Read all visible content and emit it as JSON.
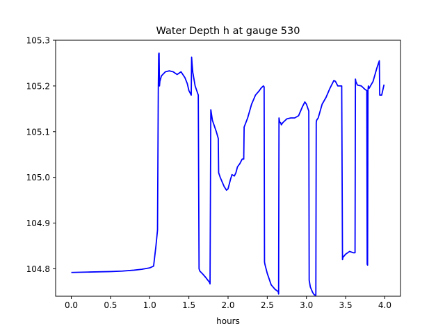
{
  "chart_data": {
    "type": "line",
    "title": "Water Depth h at gauge 530",
    "xlabel": "hours",
    "ylabel": "",
    "xlim": [
      -0.2,
      4.2
    ],
    "ylim": [
      104.74,
      105.3
    ],
    "xticks": [
      0.0,
      0.5,
      1.0,
      1.5,
      2.0,
      2.5,
      3.0,
      3.5,
      4.0
    ],
    "xtick_labels": [
      "0.0",
      "0.5",
      "1.0",
      "1.5",
      "2.0",
      "2.5",
      "3.0",
      "3.5",
      "4.0"
    ],
    "yticks": [
      104.8,
      104.9,
      105.0,
      105.1,
      105.2,
      105.3
    ],
    "ytick_labels": [
      "104.8",
      "104.9",
      "105.0",
      "105.1",
      "105.2",
      "105.3"
    ],
    "grid": false,
    "legend": "none",
    "series": [
      {
        "color": "#0000ff",
        "x": [
          0.0,
          0.25,
          0.5,
          0.65,
          0.8,
          0.9,
          1.0,
          1.05,
          1.08,
          1.1,
          1.11,
          1.115,
          1.12,
          1.125,
          1.13,
          1.15,
          1.2,
          1.25,
          1.3,
          1.35,
          1.4,
          1.45,
          1.48,
          1.5,
          1.53,
          1.535,
          1.54,
          1.55,
          1.58,
          1.6,
          1.62,
          1.63,
          1.64,
          1.68,
          1.72,
          1.765,
          1.77,
          1.78,
          1.8,
          1.85,
          1.875,
          1.88,
          1.9,
          1.95,
          1.98,
          2.0,
          2.03,
          2.05,
          2.08,
          2.1,
          2.12,
          2.15,
          2.18,
          2.2,
          2.205,
          2.25,
          2.3,
          2.35,
          2.4,
          2.42,
          2.45,
          2.46,
          2.465,
          2.47,
          2.5,
          2.55,
          2.6,
          2.64,
          2.645,
          2.65,
          2.66,
          2.67,
          2.68,
          2.7,
          2.75,
          2.8,
          2.85,
          2.9,
          2.95,
          2.98,
          3.0,
          3.03,
          3.035,
          3.05,
          3.08,
          3.1,
          3.12,
          3.125,
          3.13,
          3.15,
          3.2,
          3.25,
          3.3,
          3.35,
          3.37,
          3.4,
          3.42,
          3.45,
          3.46,
          3.465,
          3.5,
          3.55,
          3.6,
          3.62,
          3.625,
          3.63,
          3.65,
          3.7,
          3.75,
          3.77,
          3.775,
          3.78,
          3.785,
          3.79,
          3.8,
          3.85,
          3.9,
          3.93,
          3.935,
          3.94,
          3.96,
          3.99
        ],
        "y": [
          104.792,
          104.793,
          104.794,
          104.795,
          104.797,
          104.799,
          104.802,
          104.806,
          104.85,
          104.885,
          105.195,
          105.27,
          105.272,
          105.2,
          105.21,
          105.222,
          105.231,
          105.233,
          105.231,
          105.225,
          105.231,
          105.218,
          105.205,
          105.19,
          105.18,
          105.263,
          105.25,
          105.23,
          105.2,
          105.19,
          105.18,
          104.8,
          104.795,
          104.788,
          104.78,
          104.77,
          104.767,
          105.148,
          105.125,
          105.1,
          105.085,
          105.01,
          105.0,
          104.98,
          104.972,
          104.975,
          104.995,
          105.006,
          105.003,
          105.01,
          105.023,
          105.03,
          105.04,
          105.04,
          105.11,
          105.13,
          105.16,
          105.18,
          105.19,
          105.195,
          105.2,
          105.198,
          104.815,
          104.81,
          104.79,
          104.765,
          104.755,
          104.75,
          104.745,
          105.13,
          105.12,
          105.12,
          105.115,
          105.12,
          105.128,
          105.13,
          105.13,
          105.135,
          105.155,
          105.165,
          105.16,
          105.145,
          104.775,
          104.76,
          104.748,
          104.743,
          104.742,
          105.12,
          105.125,
          105.13,
          105.16,
          105.175,
          105.195,
          105.212,
          105.21,
          105.2,
          105.2,
          105.2,
          104.82,
          104.825,
          104.832,
          104.838,
          104.835,
          104.835,
          105.215,
          105.21,
          105.202,
          105.2,
          105.192,
          105.19,
          104.81,
          104.808,
          105.19,
          105.2,
          105.195,
          105.21,
          105.24,
          105.255,
          105.18,
          105.18,
          105.18,
          105.203
        ]
      }
    ]
  }
}
